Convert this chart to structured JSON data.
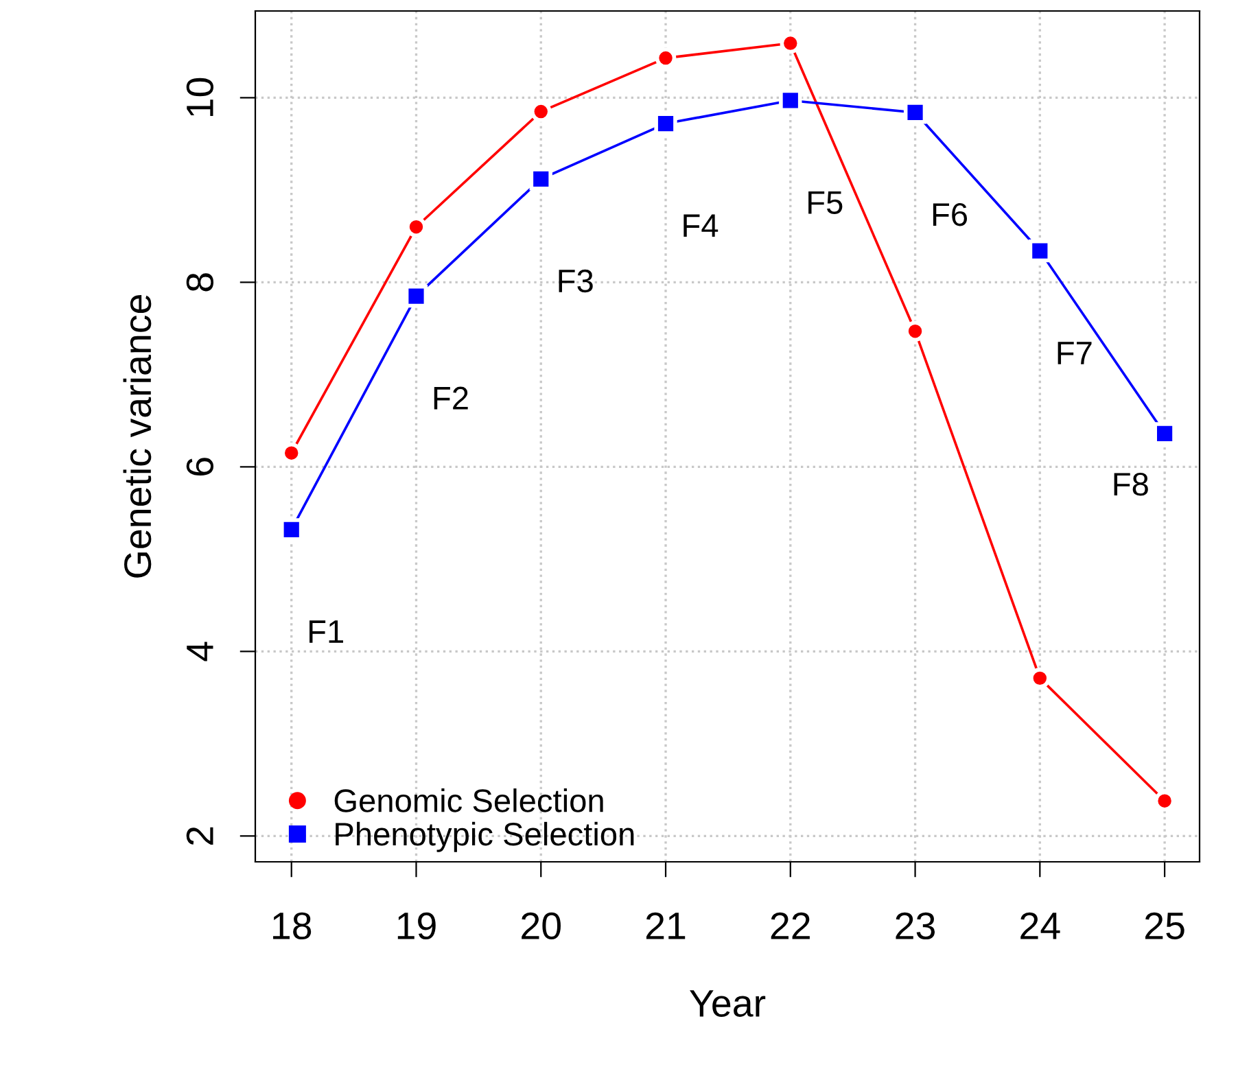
{
  "chart_data": {
    "type": "line",
    "xlabel": "Year",
    "ylabel": "Genetic variance",
    "x": [
      18,
      19,
      20,
      21,
      22,
      23,
      24,
      25
    ],
    "series": [
      {
        "name": "Genomic Selection",
        "color": "#ff0000",
        "marker": "circle",
        "values": [
          6.15,
          8.6,
          9.85,
          10.43,
          10.59,
          7.47,
          3.71,
          2.38
        ]
      },
      {
        "name": "Phenotypic Selection",
        "color": "#0000ff",
        "marker": "square",
        "values": [
          5.32,
          7.85,
          9.12,
          9.72,
          9.97,
          9.84,
          8.34,
          6.36
        ]
      }
    ],
    "annotations": [
      "F1",
      "F2",
      "F3",
      "F4",
      "F5",
      "F6",
      "F7",
      "F8"
    ],
    "xlim": [
      17.71,
      25.28
    ],
    "ylim": [
      1.72,
      10.94
    ],
    "xticks": [
      18,
      19,
      20,
      21,
      22,
      23,
      24,
      25
    ],
    "yticks": [
      2,
      4,
      6,
      8,
      10
    ],
    "grid": true,
    "legend": "bottom left",
    "line_style": "solid"
  }
}
